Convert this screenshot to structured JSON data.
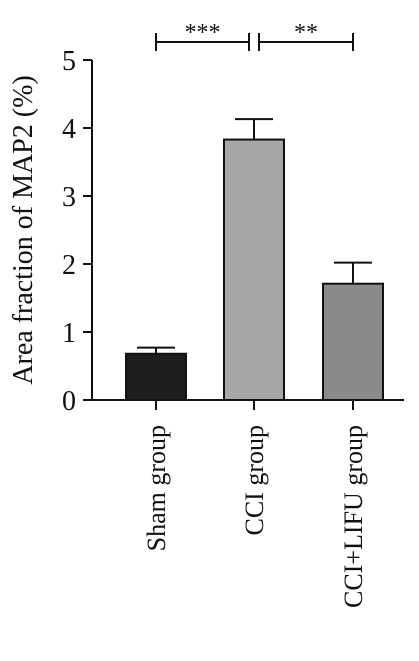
{
  "chart_data": {
    "type": "bar",
    "title": "",
    "xlabel": "",
    "ylabel": "Area fraction of MAP2 (%)",
    "ylim": [
      0,
      5
    ],
    "yticks": [
      "0",
      "1",
      "2",
      "3",
      "4",
      "5"
    ],
    "grid": false,
    "categories": [
      "Sham group",
      "CCI group",
      "CCI+LIFU group"
    ],
    "values": [
      0.68,
      3.83,
      1.71
    ],
    "errors": [
      0.09,
      0.3,
      0.31
    ],
    "colors": [
      "#1e1e1e",
      "#a7a7a9",
      "#8a8a8c"
    ],
    "significance": [
      {
        "from": 0,
        "to": 1,
        "label": "***"
      },
      {
        "from": 1,
        "to": 2,
        "label": "**"
      }
    ]
  }
}
